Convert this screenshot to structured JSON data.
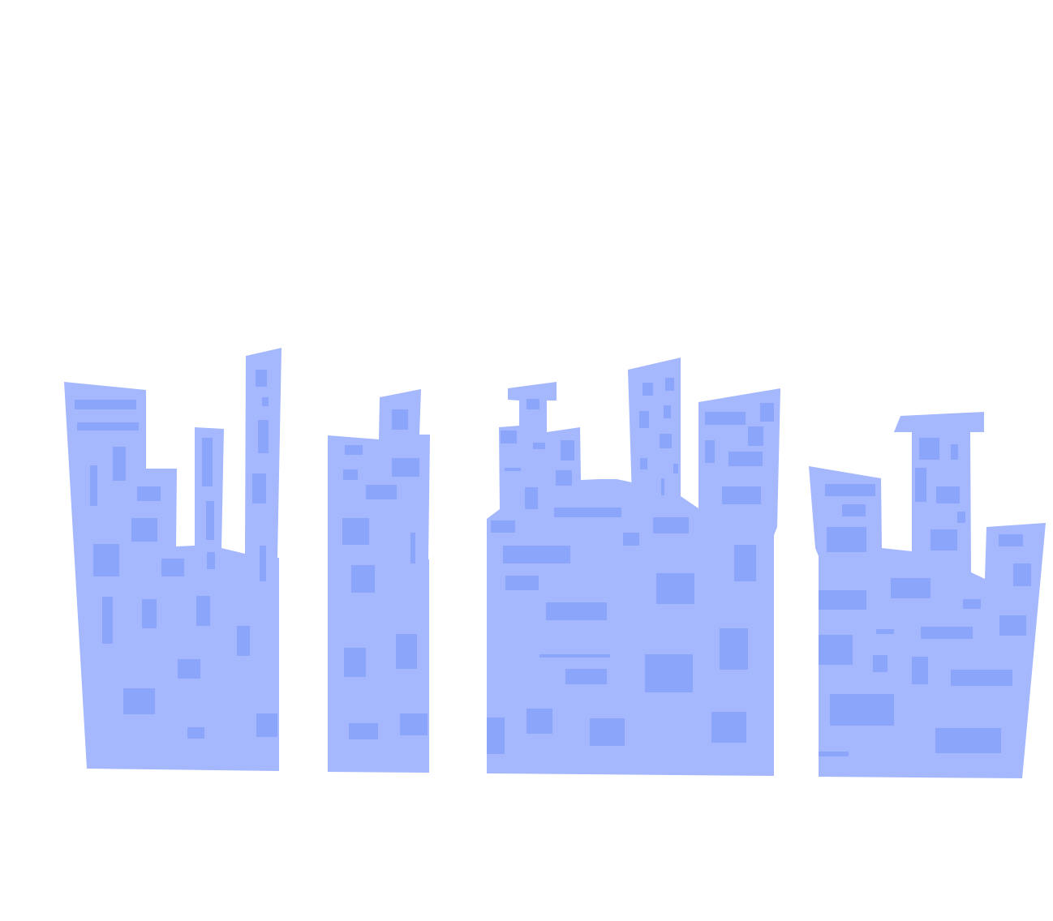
{
  "colors": {
    "background": "#ffffff",
    "building": "#a5b7fd",
    "window": "#8ba5fb"
  },
  "scene": {
    "subject": "city-skyline-illustration",
    "building_groups": [
      "left-block",
      "narrow-tower",
      "center-block",
      "right-block"
    ]
  }
}
